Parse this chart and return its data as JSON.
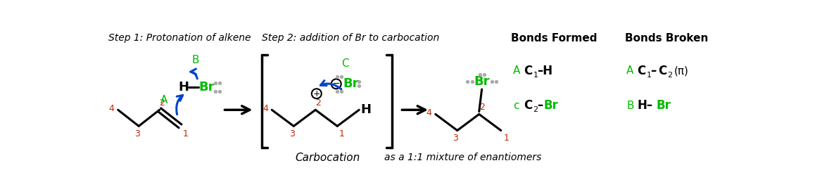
{
  "bg_color": "#ffffff",
  "step1_title": "Step 1: Protonation of alkene",
  "step2_title": "Step 2: addition of Br to carbocation",
  "bonds_formed_title": "Bonds Formed",
  "bonds_broken_title": "Bonds Broken",
  "green": "#00bb00",
  "blue": "#0044cc",
  "red": "#cc2200",
  "black": "#000000",
  "gray": "#aaaaaa"
}
